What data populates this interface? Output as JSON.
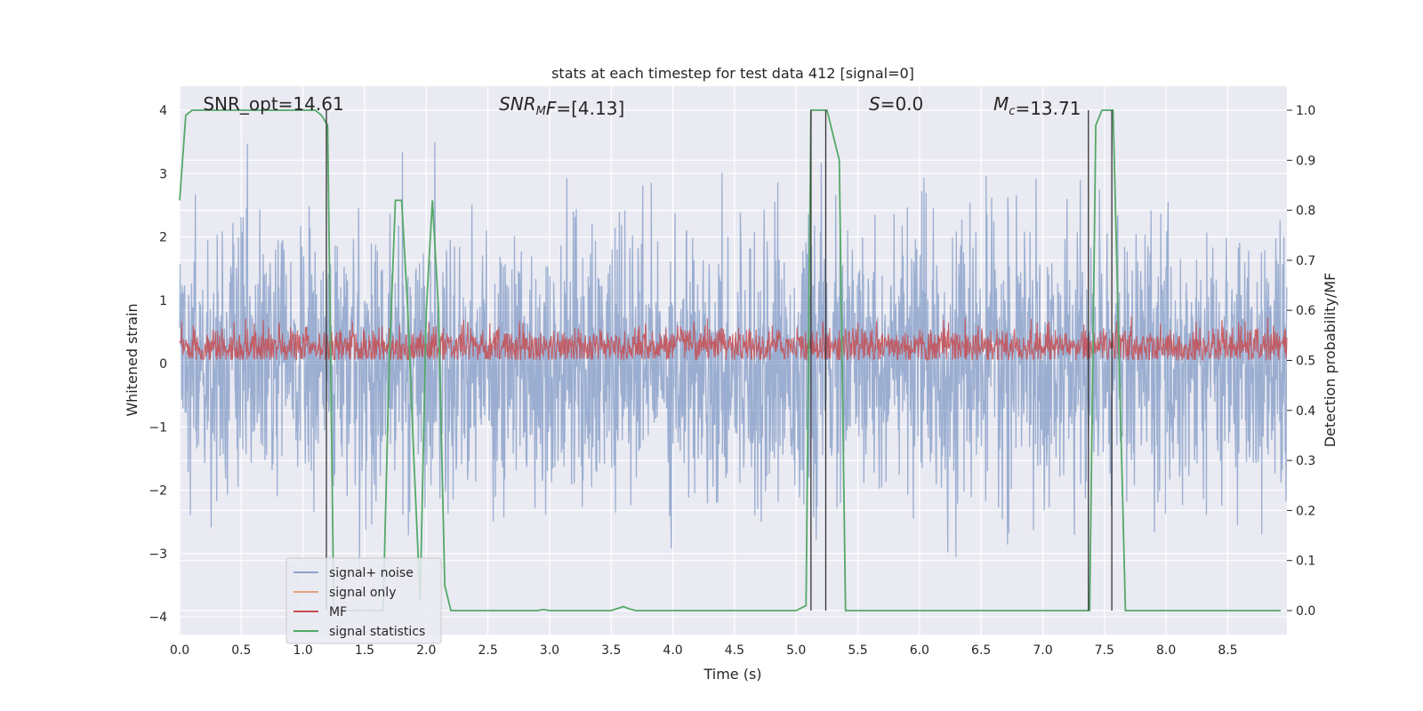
{
  "chart_data": {
    "type": "line",
    "title": "stats at each timestep for test data 412 [signal=0]",
    "xlabel": "Time (s)",
    "ylabel": "Whitened strain",
    "y2label": "Detection probability/MF",
    "xlim": [
      0.0,
      8.98
    ],
    "ylim": [
      -4.28,
      4.38
    ],
    "y2lim": [
      -0.048,
      1.048
    ],
    "x_ticks": [
      "0.0",
      "0.5",
      "1.0",
      "1.5",
      "2.0",
      "2.5",
      "3.0",
      "3.5",
      "4.0",
      "4.5",
      "5.0",
      "5.5",
      "6.0",
      "6.5",
      "7.0",
      "7.5",
      "8.0",
      "8.5"
    ],
    "x_tick_values": [
      0.0,
      0.5,
      1.0,
      1.5,
      2.0,
      2.5,
      3.0,
      3.5,
      4.0,
      4.5,
      5.0,
      5.5,
      6.0,
      6.5,
      7.0,
      7.5,
      8.0,
      8.5
    ],
    "y_ticks": [
      "4",
      "3",
      "2",
      "1",
      "0",
      "−1",
      "−2",
      "−3",
      "−4"
    ],
    "y_tick_values": [
      4,
      3,
      2,
      1,
      0,
      -1,
      -2,
      -3,
      -4
    ],
    "y2_ticks": [
      "1.0",
      "0.9",
      "0.8",
      "0.7",
      "0.6",
      "0.5",
      "0.4",
      "0.3",
      "0.2",
      "0.1",
      "0.0"
    ],
    "y2_tick_values": [
      1.0,
      0.9,
      0.8,
      0.7,
      0.6,
      0.5,
      0.4,
      0.3,
      0.2,
      0.1,
      0.0
    ],
    "grid": true,
    "legend_position": "lower-left",
    "annotations": [
      {
        "key": "snr_opt",
        "text": "SNR_opt=14.61",
        "x": 0.19,
        "y": 4.0
      },
      {
        "key": "snr_mf",
        "text_italic": "SNR",
        "text_sub": "M",
        "text_mid": "F",
        "text_rest": "=[4.13]",
        "x": 2.59,
        "y": 4.0
      },
      {
        "key": "s",
        "text_italic": "S",
        "text_rest": "=0.0",
        "x": 5.59,
        "y": 4.0
      },
      {
        "key": "mc",
        "text_italic": "M",
        "text_sub": "c",
        "text_rest": "=13.71",
        "x": 6.6,
        "y": 4.0
      }
    ],
    "series": [
      {
        "name": "signal+ noise",
        "color": "#4c72b0",
        "axis": "left",
        "kind": "noise",
        "x_range": [
          0.0,
          8.98
        ],
        "approx_amplitude": 3.5
      },
      {
        "name": "signal only",
        "color": "#dd8452",
        "axis": "left",
        "kind": "flat",
        "values": []
      },
      {
        "name": "MF",
        "color": "#c44e52",
        "axis": "right",
        "kind": "noise",
        "x_range": [
          0.0,
          8.98
        ],
        "approx_range": [
          0.5,
          0.6
        ]
      },
      {
        "name": "signal statistics",
        "color": "#55a868",
        "axis": "right",
        "kind": "line",
        "x": [
          0.0,
          0.05,
          0.1,
          0.2,
          0.4,
          0.6,
          0.8,
          1.0,
          1.1,
          1.15,
          1.2,
          1.25,
          1.28,
          1.32,
          1.4,
          1.5,
          1.6,
          1.65,
          1.7,
          1.75,
          1.8,
          1.85,
          1.9,
          1.95,
          2.0,
          2.05,
          2.1,
          2.15,
          2.2,
          2.3,
          2.5,
          2.7,
          2.9,
          2.95,
          3.0,
          3.2,
          3.5,
          3.6,
          3.65,
          3.7,
          4.0,
          4.5,
          5.0,
          5.08,
          5.12,
          5.16,
          5.2,
          5.25,
          5.3,
          5.35,
          5.4,
          5.45,
          5.5,
          6.0,
          6.5,
          7.0,
          7.3,
          7.38,
          7.43,
          7.48,
          7.52,
          7.57,
          7.62,
          7.67,
          7.72,
          8.0,
          8.5,
          8.93
        ],
        "y": [
          0.82,
          0.99,
          1.0,
          1.0,
          1.0,
          1.0,
          1.0,
          1.0,
          1.0,
          0.99,
          0.97,
          0.0,
          0.0,
          0.0,
          0.0,
          0.0,
          0.0,
          0.0,
          0.5,
          0.82,
          0.82,
          0.6,
          0.3,
          0.02,
          0.6,
          0.82,
          0.6,
          0.05,
          0.0,
          0.0,
          0.0,
          0.0,
          0.0,
          0.002,
          0.0,
          0.0,
          0.0,
          0.008,
          0.003,
          0.0,
          0.0,
          0.0,
          0.0,
          0.01,
          1.0,
          1.0,
          1.0,
          1.0,
          0.95,
          0.9,
          0.0,
          0.0,
          0.0,
          0.0,
          0.0,
          0.0,
          0.0,
          0.0,
          0.97,
          1.0,
          1.0,
          1.0,
          0.5,
          0.0,
          0.0,
          0.0,
          0.0,
          0.0
        ]
      }
    ],
    "vertical_lines": [
      1.19,
      5.12,
      5.24,
      7.37,
      7.56
    ],
    "vertical_line_color": "#333333"
  }
}
